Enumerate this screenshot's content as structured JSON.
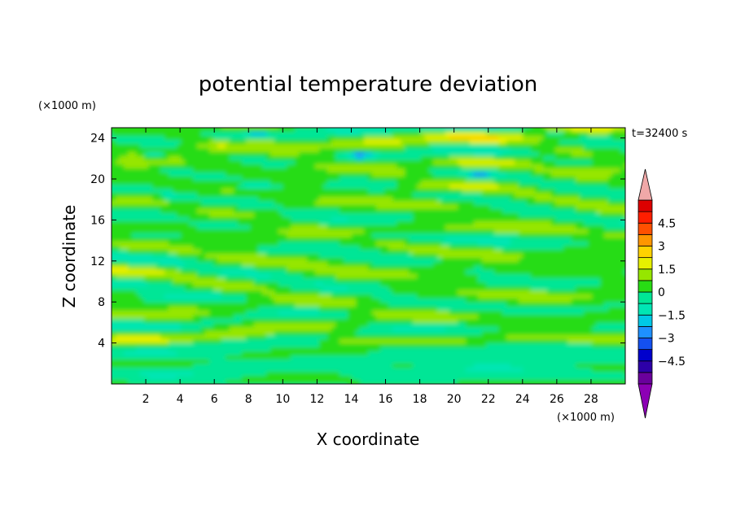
{
  "chart_data": {
    "type": "heatmap",
    "title": "potential temperature deviation",
    "xlabel": "X coordinate",
    "ylabel": "Z coordinate",
    "x_unit": "(×1000 m)",
    "y_unit": "(×1000 m)",
    "time_label": "t=32400 s",
    "xlim": [
      0,
      30
    ],
    "ylim": [
      0,
      25
    ],
    "x_ticks": [
      2,
      4,
      6,
      8,
      10,
      12,
      14,
      16,
      18,
      20,
      22,
      24,
      26,
      28
    ],
    "y_ticks": [
      4,
      8,
      12,
      16,
      20,
      24
    ],
    "colorbar": {
      "levels": [
        -5.25,
        -4.5,
        -3.75,
        -3,
        -2.25,
        -1.5,
        -0.75,
        0,
        0.75,
        1.5,
        2.25,
        3,
        3.75,
        4.5,
        5.25
      ],
      "labels": [
        "4.5",
        "3",
        "1.5",
        "0",
        "−1.5",
        "−3",
        "−4.5"
      ],
      "label_values": [
        4.5,
        3,
        1.5,
        0,
        -1.5,
        -3,
        -4.5
      ],
      "colors": [
        "#6a009c",
        "#2d00a8",
        "#0000cc",
        "#1450f0",
        "#1e90ff",
        "#00c8e6",
        "#00e6b4",
        "#00e696",
        "#28dc14",
        "#96e600",
        "#e6f000",
        "#ffd200",
        "#ff9600",
        "#ff5000",
        "#ff1e00",
        "#dd0000"
      ],
      "over_color": "#f0a8a8",
      "under_color": "#8c00b4"
    },
    "field_description": "Horizontally banded fluctuations within about ±1.5; mostly 0 to 0.75 (green) with cyan bands near -0.75; yellow patches up to about 1.5 near z=21–24 and z=5; a few blue spots near -2 around z=22–24."
  }
}
